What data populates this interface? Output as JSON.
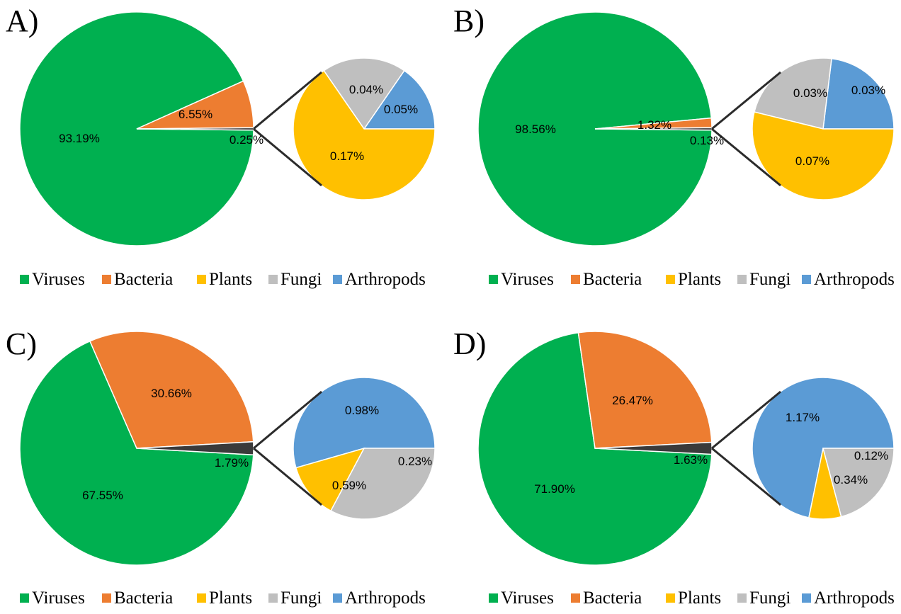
{
  "colors": {
    "Viruses": "#00B050",
    "Bacteria": "#ED7D31",
    "Plants": "#FFC000",
    "Fungi": "#BFBFBF",
    "Arthropods": "#5B9BD5",
    "Other": "#3A3A3A"
  },
  "legend": [
    "Viruses",
    "Bacteria",
    "Plants",
    "Fungi",
    "Arthropods"
  ],
  "chart_data": [
    {
      "type": "pie",
      "panel": "A)",
      "main": [
        {
          "name": "Viruses",
          "value": 93.19,
          "label": "93.19%"
        },
        {
          "name": "Bacteria",
          "value": 6.55,
          "label": "6.55%"
        },
        {
          "name": "Other",
          "value": 0.25,
          "label": "0.25%"
        }
      ],
      "sub": [
        {
          "name": "Arthropods",
          "value": 0.04,
          "label": "0.04%"
        },
        {
          "name": "Fungi",
          "value": 0.05,
          "label": "0.05%"
        },
        {
          "name": "Plants",
          "value": 0.17,
          "label": "0.17%"
        }
      ]
    },
    {
      "type": "pie",
      "panel": "B)",
      "main": [
        {
          "name": "Viruses",
          "value": 98.56,
          "label": "98.56%"
        },
        {
          "name": "Bacteria",
          "value": 1.32,
          "label": "1.32%"
        },
        {
          "name": "Other",
          "value": 0.13,
          "label": "0.13%"
        }
      ],
      "sub": [
        {
          "name": "Arthropods",
          "value": 0.03,
          "label": "0.03%"
        },
        {
          "name": "Fungi",
          "value": 0.03,
          "label": "0.03%"
        },
        {
          "name": "Plants",
          "value": 0.07,
          "label": "0.07%"
        }
      ]
    },
    {
      "type": "pie",
      "panel": "C)",
      "main": [
        {
          "name": "Viruses",
          "value": 67.55,
          "label": "67.55%"
        },
        {
          "name": "Bacteria",
          "value": 30.66,
          "label": "30.66%"
        },
        {
          "name": "Other",
          "value": 1.79,
          "label": "1.79%"
        }
      ],
      "sub": [
        {
          "name": "Arthropods",
          "value": 0.98,
          "label": "0.98%"
        },
        {
          "name": "Plants",
          "value": 0.23,
          "label": "0.23%"
        },
        {
          "name": "Fungi",
          "value": 0.59,
          "label": "0.59%"
        }
      ]
    },
    {
      "type": "pie",
      "panel": "D)",
      "main": [
        {
          "name": "Viruses",
          "value": 71.9,
          "label": "71.90%"
        },
        {
          "name": "Bacteria",
          "value": 26.47,
          "label": "26.47%"
        },
        {
          "name": "Other",
          "value": 1.63,
          "label": "1.63%"
        }
      ],
      "sub": [
        {
          "name": "Arthropods",
          "value": 1.17,
          "label": "1.17%"
        },
        {
          "name": "Plants",
          "value": 0.12,
          "label": "0.12%"
        },
        {
          "name": "Fungi",
          "value": 0.34,
          "label": "0.34%"
        }
      ]
    }
  ]
}
